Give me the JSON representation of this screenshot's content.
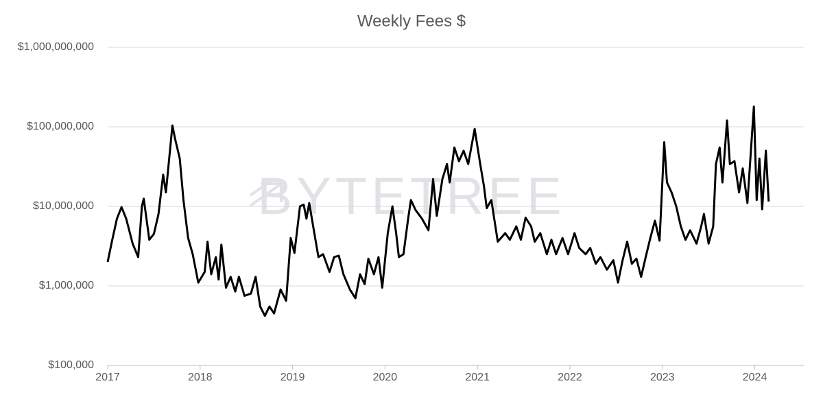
{
  "chart_data": {
    "type": "line",
    "title": "Weekly Fees $",
    "watermark": "BYTETREE",
    "log_y": true,
    "grid": true,
    "xlim": [
      2017,
      2024.53
    ],
    "xticks": [
      2017,
      2018,
      2019,
      2020,
      2021,
      2022,
      2023,
      2024
    ],
    "ylim": [
      100000,
      1000000000
    ],
    "yticks": [
      {
        "value": 100000,
        "label": "$100,000"
      },
      {
        "value": 1000000,
        "label": "$1,000,000"
      },
      {
        "value": 10000000,
        "label": "$10,000,000"
      },
      {
        "value": 100000000,
        "label": "$100,000,000"
      },
      {
        "value": 1000000000,
        "label": "$1,000,000,000"
      }
    ],
    "x": [
      2017.0,
      2017.05,
      2017.1,
      2017.15,
      2017.2,
      2017.27,
      2017.33,
      2017.37,
      2017.39,
      2017.45,
      2017.5,
      2017.55,
      2017.6,
      2017.63,
      2017.68,
      2017.7,
      2017.73,
      2017.78,
      2017.82,
      2017.87,
      2017.92,
      2017.98,
      2018.05,
      2018.08,
      2018.12,
      2018.17,
      2018.2,
      2018.23,
      2018.28,
      2018.33,
      2018.38,
      2018.42,
      2018.48,
      2018.55,
      2018.6,
      2018.65,
      2018.7,
      2018.75,
      2018.8,
      2018.87,
      2018.93,
      2018.98,
      2019.02,
      2019.08,
      2019.12,
      2019.15,
      2019.18,
      2019.23,
      2019.28,
      2019.33,
      2019.4,
      2019.45,
      2019.5,
      2019.55,
      2019.62,
      2019.68,
      2019.73,
      2019.78,
      2019.82,
      2019.88,
      2019.93,
      2019.97,
      2020.03,
      2020.08,
      2020.12,
      2020.15,
      2020.2,
      2020.25,
      2020.28,
      2020.33,
      2020.4,
      2020.47,
      2020.52,
      2020.56,
      2020.62,
      2020.67,
      2020.7,
      2020.75,
      2020.8,
      2020.85,
      2020.9,
      2020.97,
      2021.03,
      2021.07,
      2021.1,
      2021.15,
      2021.22,
      2021.3,
      2021.35,
      2021.42,
      2021.47,
      2021.52,
      2021.58,
      2021.62,
      2021.68,
      2021.75,
      2021.8,
      2021.85,
      2021.92,
      2021.98,
      2022.05,
      2022.1,
      2022.17,
      2022.22,
      2022.28,
      2022.33,
      2022.4,
      2022.47,
      2022.52,
      2022.57,
      2022.62,
      2022.67,
      2022.72,
      2022.77,
      2022.82,
      2022.87,
      2022.92,
      2022.97,
      2023.02,
      2023.05,
      2023.1,
      2023.15,
      2023.2,
      2023.25,
      2023.3,
      2023.37,
      2023.42,
      2023.45,
      2023.5,
      2023.55,
      2023.58,
      2023.62,
      2023.65,
      2023.7,
      2023.73,
      2023.78,
      2023.83,
      2023.87,
      2023.92,
      2023.96,
      2023.99,
      2024.02,
      2024.05,
      2024.08,
      2024.12,
      2024.15
    ],
    "series": [
      {
        "name": "Weekly Fees",
        "color": "#000000",
        "values": [
          2000000,
          3800000,
          7000000,
          9800000,
          7000000,
          3400000,
          2300000,
          10000000,
          12500000,
          3800000,
          4500000,
          8000000,
          25000000,
          15000000,
          60000000,
          104000000,
          70000000,
          40000000,
          12000000,
          4000000,
          2500000,
          1100000,
          1500000,
          3600000,
          1400000,
          2300000,
          1200000,
          3300000,
          950000,
          1300000,
          850000,
          1300000,
          750000,
          800000,
          1300000,
          550000,
          420000,
          550000,
          450000,
          900000,
          650000,
          4000000,
          2600000,
          10000000,
          10500000,
          7000000,
          11000000,
          5000000,
          2300000,
          2500000,
          1500000,
          2300000,
          2400000,
          1400000,
          900000,
          700000,
          1400000,
          1050000,
          2200000,
          1400000,
          2300000,
          950000,
          4600000,
          10000000,
          4600000,
          2300000,
          2500000,
          7000000,
          12000000,
          9000000,
          7000000,
          5000000,
          22000000,
          7600000,
          22000000,
          34000000,
          20000000,
          55000000,
          37000000,
          50000000,
          34000000,
          94000000,
          34000000,
          18000000,
          9500000,
          12000000,
          3600000,
          4600000,
          3800000,
          5600000,
          3800000,
          7200000,
          5600000,
          3600000,
          4600000,
          2500000,
          3800000,
          2500000,
          4000000,
          2500000,
          4600000,
          3000000,
          2500000,
          3000000,
          1900000,
          2300000,
          1600000,
          2100000,
          1100000,
          2100000,
          3600000,
          1900000,
          2200000,
          1300000,
          2300000,
          4000000,
          6600000,
          3700000,
          64000000,
          20000000,
          15000000,
          10000000,
          5600000,
          3800000,
          5000000,
          3400000,
          5600000,
          8000000,
          3400000,
          5600000,
          34000000,
          55000000,
          20000000,
          120000000,
          34000000,
          37000000,
          15000000,
          30000000,
          11000000,
          55000000,
          180000000,
          12000000,
          40000000,
          9200000,
          50000000,
          11500000
        ]
      }
    ]
  }
}
